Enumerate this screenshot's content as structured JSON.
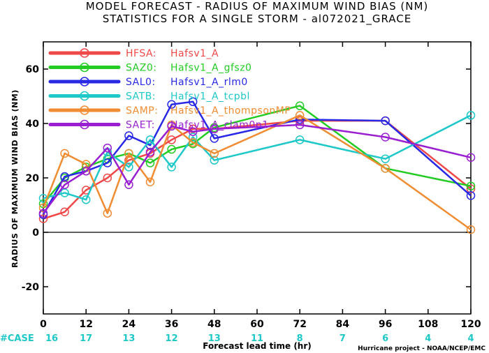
{
  "chart_data": {
    "type": "line",
    "title": "MODEL FORECAST - RADIUS OF MAXIMUM WIND BIAS (NM)",
    "subtitle": "STATISTICS FOR A SINGLE STORM - al072021_GRACE",
    "xlabel": "Forecast lead time (hr)",
    "ylabel": "RADIUS OF MAXIMUM WIND BIAS (NM)",
    "xlim": [
      0,
      120
    ],
    "ylim": [
      -30,
      70
    ],
    "x_ticks": [
      0,
      12,
      24,
      36,
      48,
      60,
      72,
      84,
      96,
      108,
      120
    ],
    "y_ticks": [
      -20,
      0,
      20,
      40,
      60
    ],
    "grid": false,
    "legend_position": "top-left",
    "case_label": "#CASE",
    "case_hours": [
      0,
      12,
      24,
      36,
      48,
      60,
      72,
      84,
      96,
      108,
      120
    ],
    "case_counts": [
      "16",
      "17",
      "13",
      "12",
      "13",
      "11",
      "8",
      "7",
      "6",
      "4",
      "4"
    ],
    "credit": "Hurricane project - NOAA/NCEP/EMC",
    "series": [
      {
        "name": "HFSA",
        "label": "HFSA:",
        "desc": "Hafsv1_A",
        "color": "#f04848",
        "x": [
          0,
          6,
          12,
          18,
          24,
          30,
          36,
          42,
          48,
          72,
          96,
          120
        ],
        "y": [
          5,
          7.5,
          15.5,
          20,
          26.5,
          29,
          34,
          38,
          38,
          41,
          41,
          16
        ]
      },
      {
        "name": "SAZ0",
        "label": "SAZ0:",
        "desc": "Hafsv1_A_gfsz0",
        "color": "#22cc22",
        "x": [
          0,
          6,
          12,
          18,
          24,
          30,
          36,
          42,
          48,
          72,
          96,
          120
        ],
        "y": [
          10.5,
          20,
          24,
          27,
          29,
          25.5,
          30.5,
          32.5,
          38.5,
          46.5,
          23.5,
          17
        ]
      },
      {
        "name": "SAL0",
        "label": "SAL0:",
        "desc": "Hafsv1_A_rlm0",
        "color": "#2828e6",
        "x": [
          0,
          6,
          12,
          18,
          24,
          30,
          36,
          42,
          48,
          72,
          96,
          120
        ],
        "y": [
          6.5,
          20.5,
          22.5,
          25.5,
          35.5,
          32,
          47,
          48,
          34.5,
          41.5,
          41,
          13.5
        ]
      },
      {
        "name": "SATB",
        "label": "SATB:",
        "desc": "Hafsv1_A_tcpbl",
        "color": "#1ec8c8",
        "x": [
          0,
          6,
          12,
          18,
          24,
          30,
          36,
          42,
          48,
          72,
          96,
          120
        ],
        "y": [
          12.5,
          14.5,
          12,
          29.5,
          24,
          34,
          24,
          35,
          26.5,
          34,
          27,
          43
        ]
      },
      {
        "name": "SAMP",
        "label": "SAMP:",
        "desc": "Hafsv1_A_thompsonMP",
        "color": "#f08c32",
        "x": [
          0,
          6,
          12,
          18,
          24,
          30,
          36,
          42,
          48,
          72,
          96,
          120
        ],
        "y": [
          9,
          29,
          25,
          7,
          29,
          18.5,
          39.5,
          33,
          29,
          43,
          23.5,
          1
        ]
      },
      {
        "name": "SAET",
        "label": "SAET:",
        "desc": "Hafsv1_A_clam0p1",
        "color": "#9a1fd0",
        "x": [
          0,
          6,
          12,
          18,
          24,
          30,
          36,
          42,
          48,
          72,
          96,
          120
        ],
        "y": [
          7,
          17.5,
          22.5,
          31,
          17.5,
          29.5,
          39,
          37,
          38,
          39.5,
          35,
          27.5
        ]
      }
    ]
  }
}
